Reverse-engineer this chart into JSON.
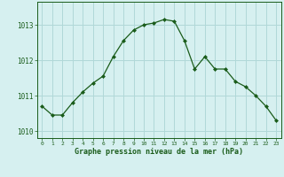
{
  "hours": [
    0,
    1,
    2,
    3,
    4,
    5,
    6,
    7,
    8,
    9,
    10,
    11,
    12,
    13,
    14,
    15,
    16,
    17,
    18,
    19,
    20,
    21,
    22,
    23
  ],
  "pressure": [
    1010.7,
    1010.45,
    1010.45,
    1010.8,
    1011.1,
    1011.35,
    1011.55,
    1012.1,
    1012.55,
    1012.85,
    1013.0,
    1013.05,
    1013.15,
    1013.1,
    1012.55,
    1011.75,
    1012.1,
    1011.75,
    1011.75,
    1011.4,
    1011.25,
    1011.0,
    1010.7,
    1010.3
  ],
  "line_color": "#1a5c1a",
  "marker_color": "#1a5c1a",
  "bg_color": "#d6f0f0",
  "grid_color": "#b0d8d8",
  "xlabel": "Graphe pression niveau de la mer (hPa)",
  "ylim_min": 1009.8,
  "ylim_max": 1013.65,
  "yticks": [
    1010,
    1011,
    1012,
    1013
  ],
  "xticks": [
    0,
    1,
    2,
    3,
    4,
    5,
    6,
    7,
    8,
    9,
    10,
    11,
    12,
    13,
    14,
    15,
    16,
    17,
    18,
    19,
    20,
    21,
    22,
    23
  ],
  "spine_color": "#1a5c1a",
  "axis_bg": "#d6f0f0"
}
